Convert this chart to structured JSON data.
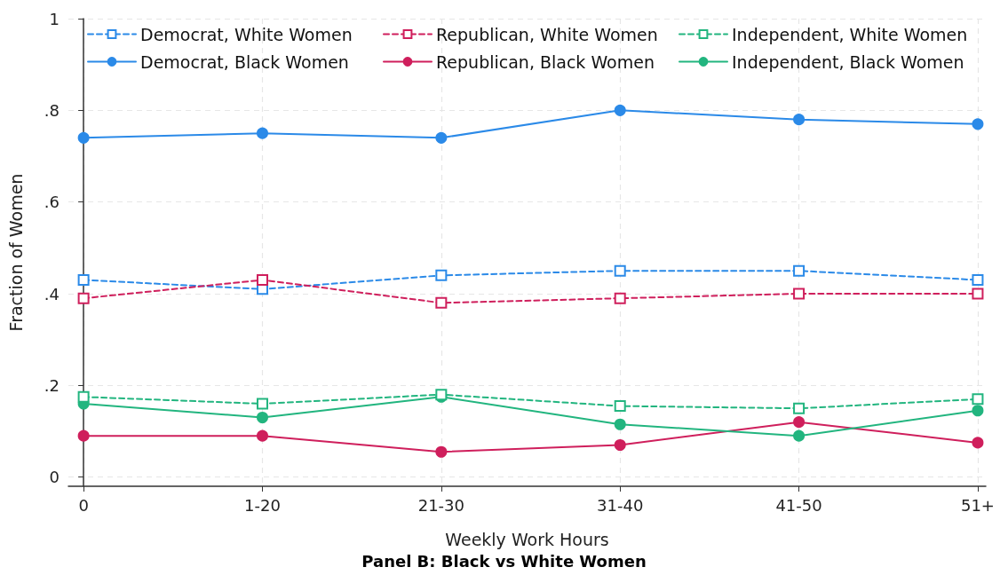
{
  "chart_data": {
    "type": "line",
    "title": "Panel B: Black vs White Women",
    "xlabel": "Weekly Work Hours",
    "ylabel": "Fraction of Women",
    "categories": [
      "0",
      "1-20",
      "21-30",
      "31-40",
      "41-50",
      "51+"
    ],
    "ylim": [
      -0.02,
      1
    ],
    "yticks": [
      0,
      {
        "value": 0.2,
        "label": ".2"
      },
      {
        "value": 0.4,
        "label": ".4"
      },
      {
        "value": 0.6,
        "label": ".6"
      },
      {
        "value": 0.8,
        "label": ".8"
      },
      1
    ],
    "grid": true,
    "legend": "top",
    "series": [
      {
        "name": "Democrat, White Women",
        "color": "#2b8ae8",
        "marker": "square",
        "line_style": "dashed",
        "values": [
          0.43,
          0.41,
          0.44,
          0.45,
          0.45,
          0.43
        ]
      },
      {
        "name": "Republican, White Women",
        "color": "#cf1f5c",
        "marker": "square",
        "line_style": "dashed",
        "values": [
          0.39,
          0.43,
          0.38,
          0.39,
          0.4,
          0.4
        ]
      },
      {
        "name": "Independent, White Women",
        "color": "#22b57f",
        "marker": "square",
        "line_style": "dashed",
        "values": [
          0.175,
          0.16,
          0.18,
          0.155,
          0.15,
          0.17
        ]
      },
      {
        "name": "Democrat, Black Women",
        "color": "#2b8ae8",
        "marker": "circle",
        "line_style": "solid",
        "values": [
          0.74,
          0.75,
          0.74,
          0.8,
          0.78,
          0.77
        ]
      },
      {
        "name": "Republican, Black Women",
        "color": "#cf1f5c",
        "marker": "circle",
        "line_style": "solid",
        "values": [
          0.09,
          0.09,
          0.055,
          0.07,
          0.12,
          0.075
        ]
      },
      {
        "name": "Independent, Black Women",
        "color": "#22b57f",
        "marker": "circle",
        "line_style": "solid",
        "values": [
          0.16,
          0.13,
          0.175,
          0.115,
          0.09,
          0.145
        ]
      }
    ]
  }
}
